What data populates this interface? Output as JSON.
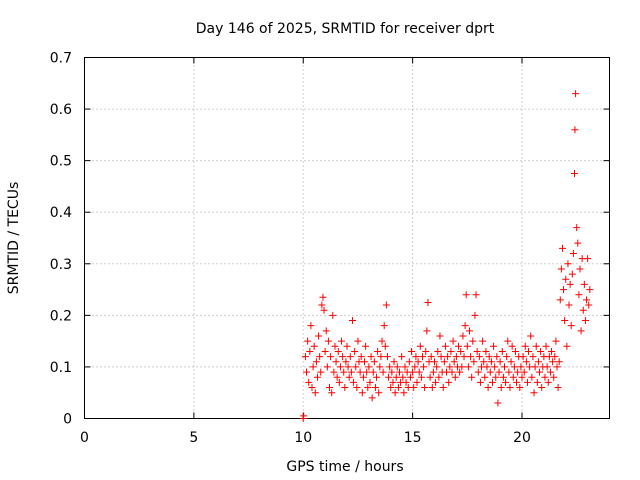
{
  "chart_data": {
    "type": "scatter",
    "title": "Day 146 of 2025, SRMTID for receiver dprt",
    "xlabel": "GPS time / hours",
    "ylabel": "SRMTID / TECUs",
    "xlim": [
      0,
      24
    ],
    "ylim": [
      0,
      0.7
    ],
    "xticks": [
      0,
      5,
      10,
      15,
      20
    ],
    "xtick_labels": [
      "0",
      "5",
      "10",
      "15",
      "20"
    ],
    "yticks": [
      0,
      0.1,
      0.2,
      0.3,
      0.4,
      0.5,
      0.6,
      0.7
    ],
    "ytick_labels": [
      "0",
      "0.1",
      "0.2",
      "0.3",
      "0.4",
      "0.5",
      "0.6",
      "0.7"
    ],
    "grid": true,
    "marker": "+",
    "color": "#ff0000",
    "series": [
      {
        "name": "SRMTID",
        "points": [
          [
            10.0,
            0.0
          ],
          [
            10.02,
            0.005
          ],
          [
            10.1,
            0.12
          ],
          [
            10.15,
            0.09
          ],
          [
            10.2,
            0.15
          ],
          [
            10.25,
            0.07
          ],
          [
            10.3,
            0.13
          ],
          [
            10.35,
            0.18
          ],
          [
            10.4,
            0.06
          ],
          [
            10.45,
            0.1
          ],
          [
            10.5,
            0.14
          ],
          [
            10.55,
            0.05
          ],
          [
            10.6,
            0.11
          ],
          [
            10.65,
            0.08
          ],
          [
            10.7,
            0.16
          ],
          [
            10.75,
            0.12
          ],
          [
            10.8,
            0.09
          ],
          [
            10.85,
            0.22
          ],
          [
            10.9,
            0.235
          ],
          [
            10.95,
            0.21
          ],
          [
            11.0,
            0.13
          ],
          [
            11.05,
            0.17
          ],
          [
            11.1,
            0.1
          ],
          [
            11.15,
            0.15
          ],
          [
            11.2,
            0.06
          ],
          [
            11.25,
            0.12
          ],
          [
            11.3,
            0.05
          ],
          [
            11.35,
            0.2
          ],
          [
            11.4,
            0.09
          ],
          [
            11.45,
            0.14
          ],
          [
            11.5,
            0.11
          ],
          [
            11.55,
            0.08
          ],
          [
            11.6,
            0.13
          ],
          [
            11.65,
            0.07
          ],
          [
            11.7,
            0.1
          ],
          [
            11.75,
            0.15
          ],
          [
            11.8,
            0.12
          ],
          [
            11.85,
            0.09
          ],
          [
            11.9,
            0.06
          ],
          [
            11.95,
            0.11
          ],
          [
            12.0,
            0.14
          ],
          [
            12.05,
            0.1
          ],
          [
            12.1,
            0.08
          ],
          [
            12.15,
            0.12
          ],
          [
            12.2,
            0.09
          ],
          [
            12.25,
            0.19
          ],
          [
            12.3,
            0.07
          ],
          [
            12.35,
            0.13
          ],
          [
            12.4,
            0.1
          ],
          [
            12.45,
            0.06
          ],
          [
            12.5,
            0.15
          ],
          [
            12.55,
            0.11
          ],
          [
            12.6,
            0.09
          ],
          [
            12.65,
            0.12
          ],
          [
            12.7,
            0.05
          ],
          [
            12.75,
            0.08
          ],
          [
            12.8,
            0.11
          ],
          [
            12.85,
            0.14
          ],
          [
            12.9,
            0.09
          ],
          [
            12.95,
            0.06
          ],
          [
            13.0,
            0.1
          ],
          [
            13.05,
            0.07
          ],
          [
            13.1,
            0.12
          ],
          [
            13.15,
            0.04
          ],
          [
            13.2,
            0.09
          ],
          [
            13.25,
            0.11
          ],
          [
            13.3,
            0.06
          ],
          [
            13.35,
            0.08
          ],
          [
            13.4,
            0.13
          ],
          [
            13.45,
            0.05
          ],
          [
            13.5,
            0.1
          ],
          [
            13.55,
            0.12
          ],
          [
            13.6,
            0.15
          ],
          [
            13.65,
            0.09
          ],
          [
            13.7,
            0.18
          ],
          [
            13.75,
            0.14
          ],
          [
            13.8,
            0.22
          ],
          [
            13.85,
            0.12
          ],
          [
            13.9,
            0.08
          ],
          [
            13.95,
            0.1
          ],
          [
            14.0,
            0.06
          ],
          [
            14.05,
            0.09
          ],
          [
            14.1,
            0.07
          ],
          [
            14.15,
            0.11
          ],
          [
            14.2,
            0.05
          ],
          [
            14.25,
            0.08
          ],
          [
            14.3,
            0.1
          ],
          [
            14.35,
            0.06
          ],
          [
            14.4,
            0.09
          ],
          [
            14.45,
            0.07
          ],
          [
            14.5,
            0.12
          ],
          [
            14.55,
            0.08
          ],
          [
            14.6,
            0.05
          ],
          [
            14.65,
            0.1
          ],
          [
            14.7,
            0.07
          ],
          [
            14.75,
            0.09
          ],
          [
            14.8,
            0.06
          ],
          [
            14.85,
            0.11
          ],
          [
            14.9,
            0.08
          ],
          [
            14.95,
            0.13
          ],
          [
            15.0,
            0.09
          ],
          [
            15.05,
            0.06
          ],
          [
            15.1,
            0.1
          ],
          [
            15.15,
            0.12
          ],
          [
            15.2,
            0.07
          ],
          [
            15.25,
            0.11
          ],
          [
            15.3,
            0.09
          ],
          [
            15.35,
            0.14
          ],
          [
            15.4,
            0.08
          ],
          [
            15.45,
            0.12
          ],
          [
            15.5,
            0.1
          ],
          [
            15.55,
            0.06
          ],
          [
            15.6,
            0.13
          ],
          [
            15.65,
            0.17
          ],
          [
            15.7,
            0.225
          ],
          [
            15.75,
            0.11
          ],
          [
            15.8,
            0.08
          ],
          [
            15.85,
            0.12
          ],
          [
            15.9,
            0.06
          ],
          [
            15.95,
            0.09
          ],
          [
            16.0,
            0.11
          ],
          [
            16.05,
            0.07
          ],
          [
            16.1,
            0.1
          ],
          [
            16.15,
            0.13
          ],
          [
            16.2,
            0.08
          ],
          [
            16.25,
            0.16
          ],
          [
            16.3,
            0.12
          ],
          [
            16.35,
            0.09
          ],
          [
            16.4,
            0.06
          ],
          [
            16.45,
            0.11
          ],
          [
            16.5,
            0.14
          ],
          [
            16.55,
            0.09
          ],
          [
            16.6,
            0.12
          ],
          [
            16.65,
            0.07
          ],
          [
            16.7,
            0.1
          ],
          [
            16.75,
            0.13
          ],
          [
            16.8,
            0.09
          ],
          [
            16.85,
            0.15
          ],
          [
            16.9,
            0.11
          ],
          [
            16.95,
            0.08
          ],
          [
            17.0,
            0.12
          ],
          [
            17.05,
            0.1
          ],
          [
            17.1,
            0.14
          ],
          [
            17.15,
            0.09
          ],
          [
            17.2,
            0.13
          ],
          [
            17.25,
            0.1
          ],
          [
            17.3,
            0.16
          ],
          [
            17.35,
            0.12
          ],
          [
            17.4,
            0.18
          ],
          [
            17.45,
            0.24
          ],
          [
            17.5,
            0.14
          ],
          [
            17.55,
            0.1
          ],
          [
            17.6,
            0.17
          ],
          [
            17.65,
            0.12
          ],
          [
            17.7,
            0.08
          ],
          [
            17.75,
            0.15
          ],
          [
            17.8,
            0.11
          ],
          [
            17.85,
            0.2
          ],
          [
            17.9,
            0.24
          ],
          [
            17.95,
            0.13
          ],
          [
            18.0,
            0.09
          ],
          [
            18.05,
            0.12
          ],
          [
            18.1,
            0.07
          ],
          [
            18.15,
            0.1
          ],
          [
            18.2,
            0.15
          ],
          [
            18.25,
            0.11
          ],
          [
            18.3,
            0.08
          ],
          [
            18.35,
            0.13
          ],
          [
            18.4,
            0.1
          ],
          [
            18.45,
            0.06
          ],
          [
            18.5,
            0.12
          ],
          [
            18.55,
            0.09
          ],
          [
            18.6,
            0.11
          ],
          [
            18.65,
            0.07
          ],
          [
            18.7,
            0.14
          ],
          [
            18.75,
            0.1
          ],
          [
            18.8,
            0.08
          ],
          [
            18.85,
            0.12
          ],
          [
            18.9,
            0.03
          ],
          [
            18.95,
            0.09
          ],
          [
            19.0,
            0.11
          ],
          [
            19.05,
            0.06
          ],
          [
            19.1,
            0.13
          ],
          [
            19.15,
            0.08
          ],
          [
            19.2,
            0.1
          ],
          [
            19.25,
            0.07
          ],
          [
            19.3,
            0.12
          ],
          [
            19.35,
            0.15
          ],
          [
            19.4,
            0.09
          ],
          [
            19.45,
            0.06
          ],
          [
            19.5,
            0.11
          ],
          [
            19.55,
            0.14
          ],
          [
            19.6,
            0.08
          ],
          [
            19.65,
            0.1
          ],
          [
            19.7,
            0.13
          ],
          [
            19.75,
            0.07
          ],
          [
            19.8,
            0.09
          ],
          [
            19.85,
            0.12
          ],
          [
            19.9,
            0.06
          ],
          [
            19.95,
            0.1
          ],
          [
            20.0,
            0.08
          ],
          [
            20.05,
            0.12
          ],
          [
            20.1,
            0.09
          ],
          [
            20.15,
            0.14
          ],
          [
            20.2,
            0.11
          ],
          [
            20.25,
            0.07
          ],
          [
            20.3,
            0.13
          ],
          [
            20.35,
            0.1
          ],
          [
            20.4,
            0.16
          ],
          [
            20.45,
            0.08
          ],
          [
            20.5,
            0.12
          ],
          [
            20.55,
            0.05
          ],
          [
            20.6,
            0.1
          ],
          [
            20.65,
            0.14
          ],
          [
            20.7,
            0.07
          ],
          [
            20.75,
            0.11
          ],
          [
            20.8,
            0.09
          ],
          [
            20.85,
            0.13
          ],
          [
            20.9,
            0.06
          ],
          [
            20.95,
            0.1
          ],
          [
            21.0,
            0.12
          ],
          [
            21.05,
            0.08
          ],
          [
            21.1,
            0.14
          ],
          [
            21.15,
            0.1
          ],
          [
            21.2,
            0.07
          ],
          [
            21.25,
            0.12
          ],
          [
            21.3,
            0.09
          ],
          [
            21.35,
            0.13
          ],
          [
            21.4,
            0.11
          ],
          [
            21.45,
            0.08
          ],
          [
            21.5,
            0.12
          ],
          [
            21.55,
            0.15
          ],
          [
            21.6,
            0.1
          ],
          [
            21.65,
            0.06
          ],
          [
            21.7,
            0.11
          ],
          [
            21.75,
            0.23
          ],
          [
            21.8,
            0.29
          ],
          [
            21.85,
            0.33
          ],
          [
            21.9,
            0.25
          ],
          [
            21.95,
            0.19
          ],
          [
            22.0,
            0.27
          ],
          [
            22.05,
            0.14
          ],
          [
            22.1,
            0.3
          ],
          [
            22.15,
            0.22
          ],
          [
            22.2,
            0.26
          ],
          [
            22.25,
            0.18
          ],
          [
            22.3,
            0.28
          ],
          [
            22.35,
            0.32
          ],
          [
            22.4,
            0.475
          ],
          [
            22.42,
            0.56
          ],
          [
            22.45,
            0.63
          ],
          [
            22.5,
            0.37
          ],
          [
            22.55,
            0.34
          ],
          [
            22.6,
            0.24
          ],
          [
            22.65,
            0.29
          ],
          [
            22.7,
            0.17
          ],
          [
            22.75,
            0.31
          ],
          [
            22.8,
            0.21
          ],
          [
            22.85,
            0.26
          ],
          [
            22.9,
            0.19
          ],
          [
            22.95,
            0.23
          ],
          [
            23.0,
            0.31
          ],
          [
            23.05,
            0.22
          ],
          [
            23.1,
            0.25
          ]
        ]
      }
    ]
  }
}
